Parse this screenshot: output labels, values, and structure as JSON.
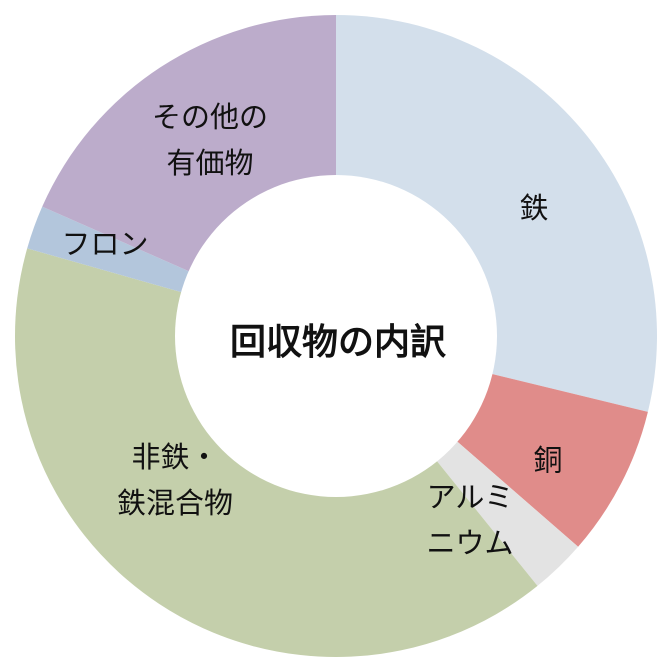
{
  "chart_data": {
    "type": "pie",
    "variant": "donut",
    "title": "回収物の内訳",
    "legend": "none",
    "start": "top",
    "direction": "clockwise",
    "slices": [
      {
        "label": [
          "鉄"
        ],
        "value": 28.8,
        "color": "#d3dfeb"
      },
      {
        "label": [
          "銅"
        ],
        "value": 7.6,
        "color": "#e08c8a"
      },
      {
        "label": [
          "アルミ",
          "ニウム"
        ],
        "value": 2.8,
        "color": "#e3e3e3"
      },
      {
        "label": [
          "非鉄・",
          "鉄混合物"
        ],
        "value": 40.2,
        "color": "#c4cfab"
      },
      {
        "label": [
          "フロン"
        ],
        "value": 2.2,
        "color": "#b3c6dc"
      },
      {
        "label": [
          "その他の",
          "有価物"
        ],
        "value": 18.4,
        "color": "#bcaccb"
      }
    ]
  }
}
